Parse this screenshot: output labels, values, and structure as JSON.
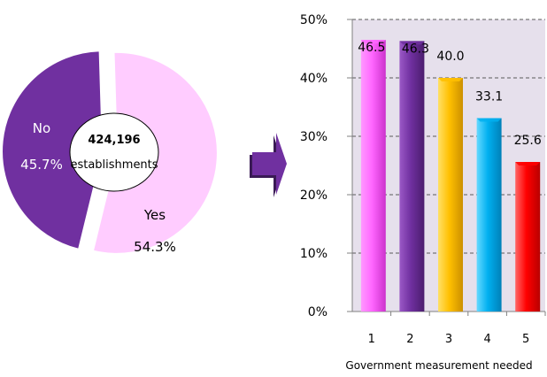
{
  "pie": {
    "center_value": "424,196",
    "center_label": "establishments",
    "slices": [
      {
        "label": "No",
        "percent_label": "45.7%",
        "value": 45.7,
        "color": "#7030a0"
      },
      {
        "label": "Yes",
        "percent_label": "54.3%",
        "value": 54.3,
        "color": "#ffccff"
      }
    ]
  },
  "arrow": {
    "color": "#7030a0"
  },
  "chart_data": [
    {
      "type": "pie",
      "labels": [
        "No",
        "Yes"
      ],
      "values": [
        45.7,
        54.3
      ],
      "center_text": [
        "424,196",
        "establishments"
      ]
    },
    {
      "type": "bar",
      "categories": [
        "1",
        "2",
        "3",
        "4",
        "5"
      ],
      "values": [
        46.5,
        46.3,
        40.0,
        33.1,
        25.6
      ],
      "value_labels": [
        "46.5",
        "46.3",
        "40.0",
        "33.1",
        "25.6"
      ],
      "colors": [
        "#ff66ff",
        "#7030a0",
        "#ffc000",
        "#00b0f0",
        "#ff0000"
      ],
      "xlabel": "Government measurement needed",
      "ylabel": "",
      "ylim": [
        0,
        50
      ],
      "yticks": [
        "0%",
        "10%",
        "20%",
        "30%",
        "40%",
        "50%"
      ],
      "grid": true,
      "plot_background": "#e6e0ec"
    }
  ]
}
